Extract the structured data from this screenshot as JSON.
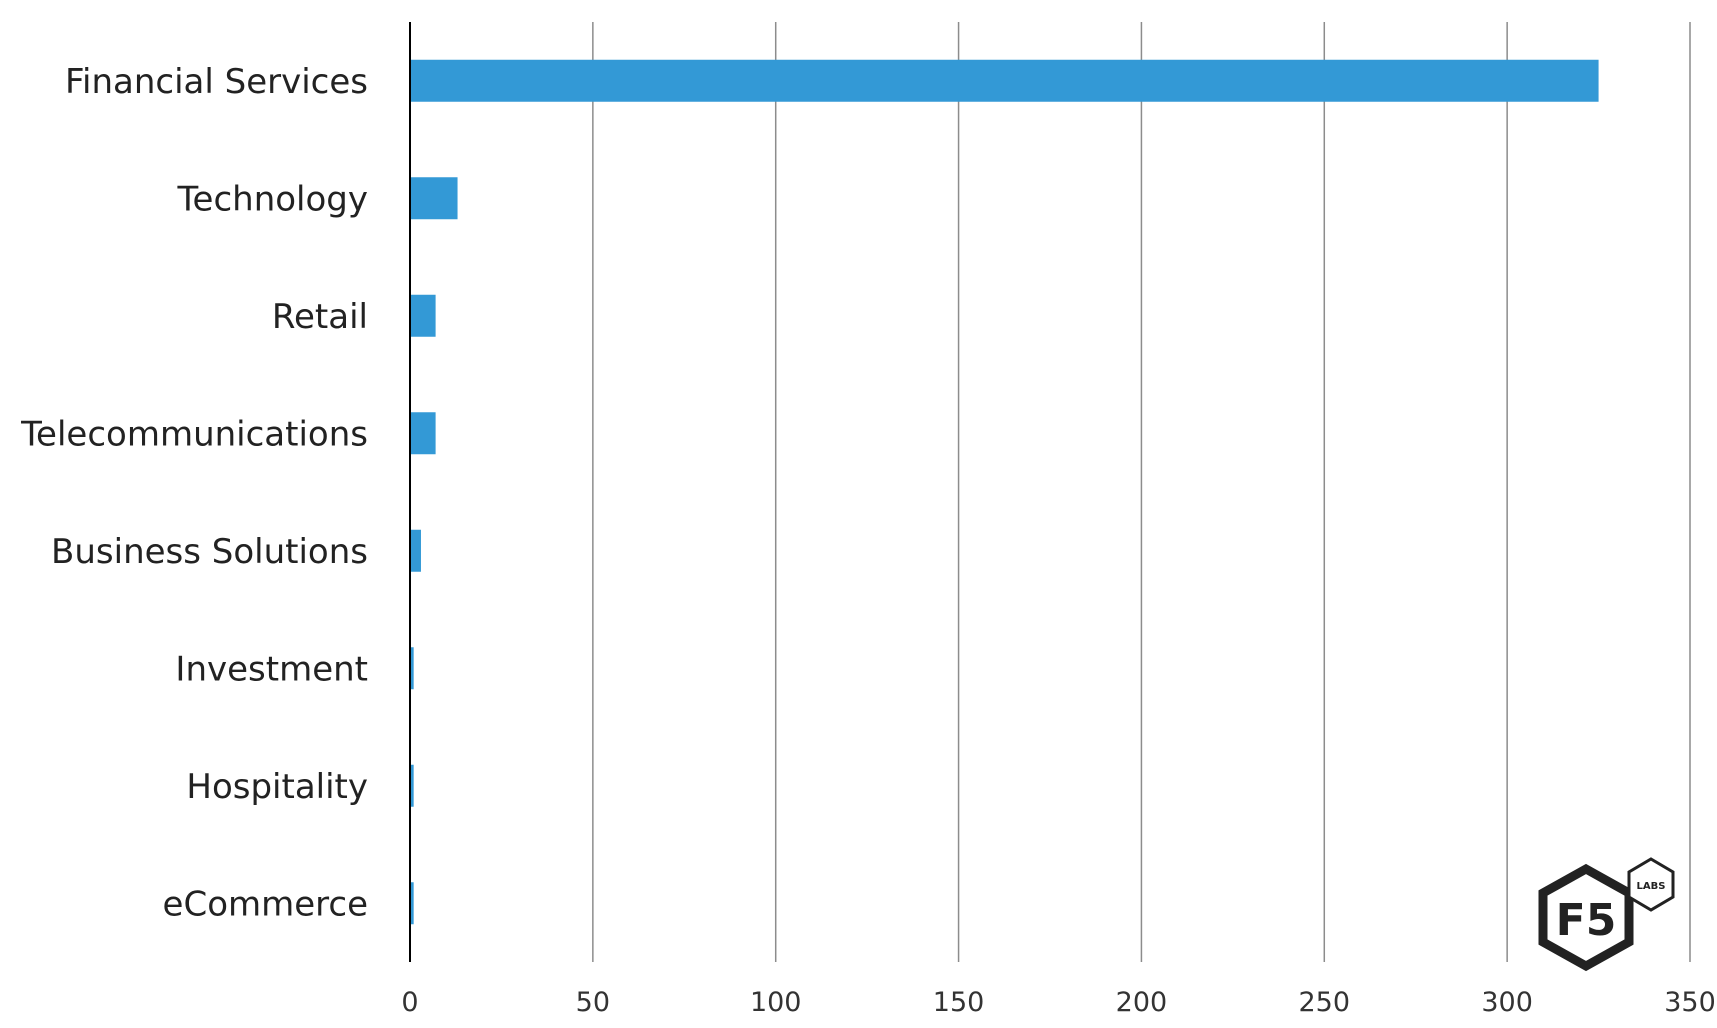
{
  "chart_data": {
    "type": "bar",
    "orientation": "horizontal",
    "categories": [
      "Financial Services",
      "Technology",
      "Retail",
      "Telecommunications",
      "Business Solutions",
      "Investment",
      "Hospitality",
      "eCommerce"
    ],
    "values": [
      325,
      13,
      7,
      7,
      3,
      1,
      1,
      1
    ],
    "xlim": [
      0,
      350
    ],
    "xticks": [
      "0",
      "50",
      "100",
      "150",
      "200",
      "250",
      "300",
      "350"
    ],
    "grid": "vertical",
    "bar_color": "#3399d6",
    "gridline_color": "#8c8c8c",
    "axis_color": "#000000"
  },
  "logo": {
    "name": "f5-labs-logo",
    "main_text": "F5",
    "badge_text": "LABS",
    "color": "#222222"
  }
}
